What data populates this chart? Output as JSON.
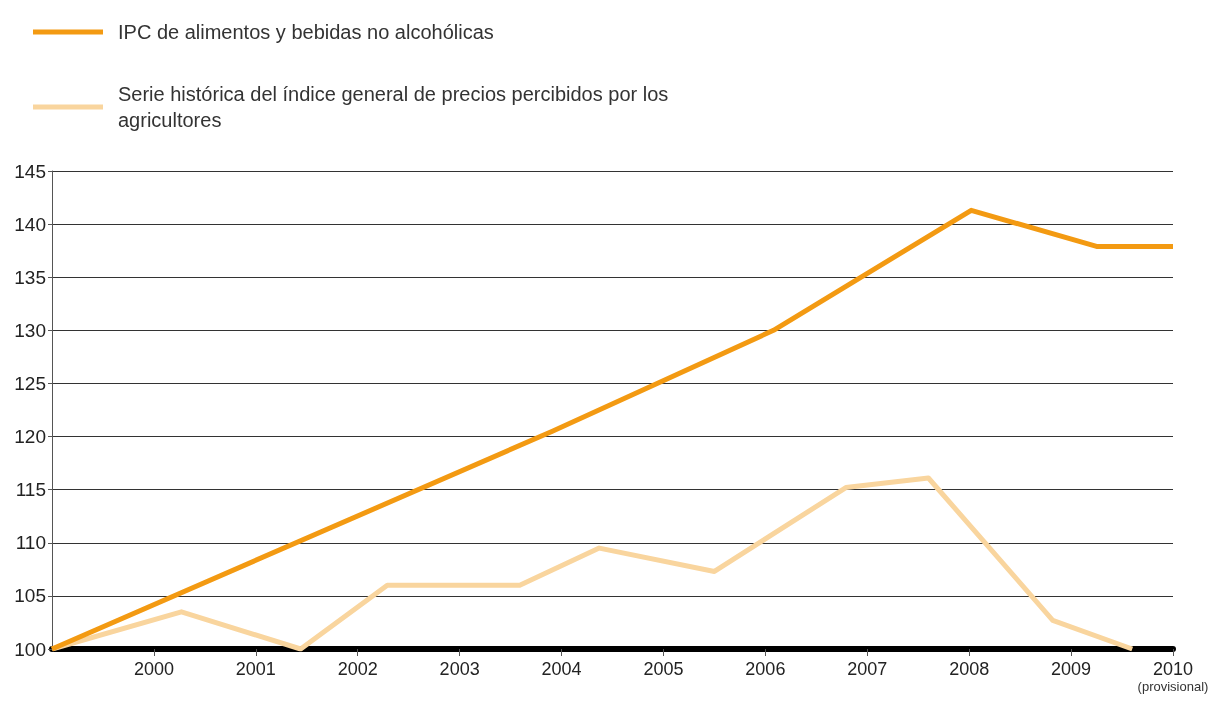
{
  "chart_data": {
    "type": "line",
    "series": [
      {
        "name": "IPC de alimentos y bebidas no alcohólicas",
        "color": "#f39a12",
        "x": [
          1999,
          2003.91,
          2006.08,
          2008.02,
          2009.25,
          2010
        ],
        "values": [
          100,
          120.5,
          130,
          141.3,
          137.9,
          137.9
        ]
      },
      {
        "name": "Serie histórica del índice general de precios percibidos por los agricultores",
        "color": "#f9d59e",
        "x": [
          1999,
          2000.27,
          2001.44,
          2002.29,
          2003.59,
          2004.37,
          2005.5,
          2006.79,
          2007.6,
          2008.82,
          2009.6
        ],
        "values": [
          100,
          103.5,
          100,
          106,
          106,
          109.5,
          107.3,
          115.2,
          116.1,
          102.7,
          100
        ]
      }
    ],
    "xlim": [
      1999,
      2010
    ],
    "xticks": [
      2000,
      2001,
      2002,
      2003,
      2004,
      2005,
      2006,
      2007,
      2008,
      2009,
      {
        "value": 2010,
        "label": "2010\n(provisional)"
      }
    ],
    "ylim": [
      100,
      145
    ],
    "yticks": [
      100,
      105,
      110,
      115,
      120,
      125,
      130,
      135,
      140,
      145
    ],
    "grid": "y",
    "legend": "top left",
    "marker": "none",
    "line_style": "solid"
  }
}
